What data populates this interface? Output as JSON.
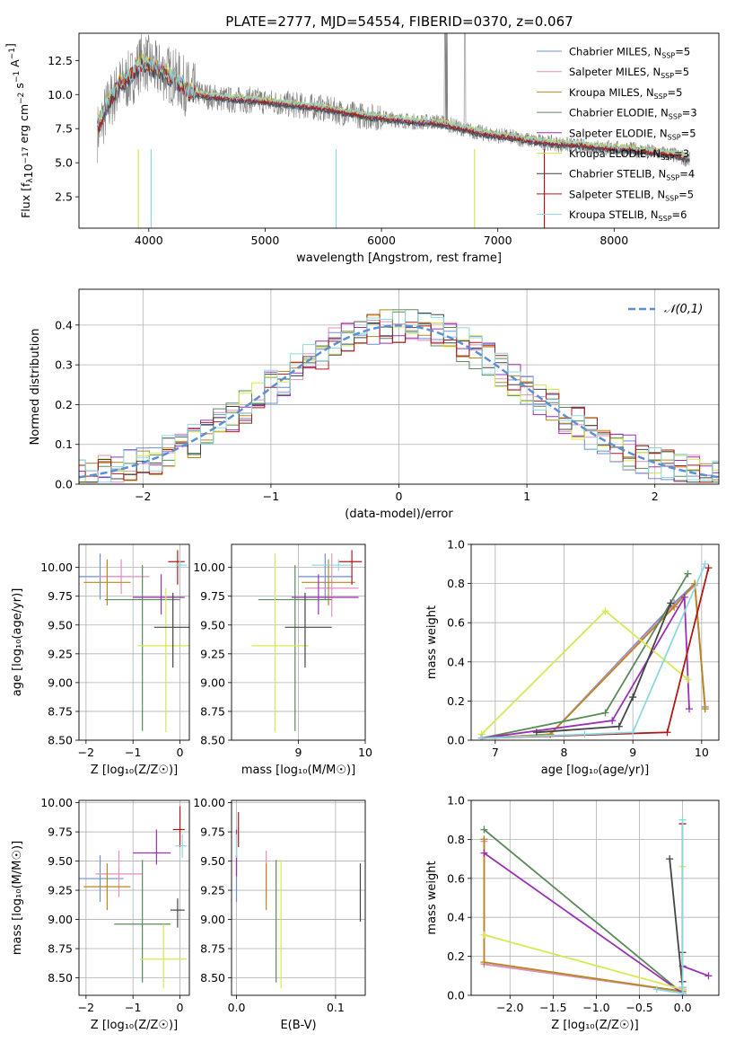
{
  "figure": {
    "title": "PLATE=2777, MJD=54554, FIBERID=0370, z=0.067"
  },
  "models": [
    {
      "name": "Chabrier MILES, N",
      "sub": "SSP",
      "tail": "=5",
      "color": "#6b8ed6"
    },
    {
      "name": "Salpeter MILES, N",
      "sub": "SSP",
      "tail": "=5",
      "color": "#e48fbd"
    },
    {
      "name": "Kroupa MILES, N",
      "sub": "SSP",
      "tail": "=5",
      "color": "#b8881c"
    },
    {
      "name": "Chabrier ELODIE, N",
      "sub": "SSP",
      "tail": "=3",
      "color": "#5a8a5a"
    },
    {
      "name": "Salpeter ELODIE, N",
      "sub": "SSP",
      "tail": "=5",
      "color": "#9b30b4"
    },
    {
      "name": "Kroupa ELODIE, N",
      "sub": "SSP",
      "tail": "=3",
      "color": "#d8e84e"
    },
    {
      "name": "Chabrier STELIB, N",
      "sub": "SSP",
      "tail": "=4",
      "color": "#444444"
    },
    {
      "name": "Salpeter STELIB, N",
      "sub": "SSP",
      "tail": "=5",
      "color": "#b01818"
    },
    {
      "name": "Kroupa STELIB, N",
      "sub": "SSP",
      "tail": "=6",
      "color": "#8cd8e0"
    }
  ],
  "chart_data": [
    {
      "id": "spectrum",
      "type": "line",
      "xlabel": "wavelength [Angstrom, rest frame]",
      "ylabel": "Flux [f_λ 10^-17 erg cm^-2 s^-1 A^-1]",
      "xlim": [
        3400,
        8900
      ],
      "ylim": [
        0.2,
        14.5
      ],
      "xticks": [
        4000,
        5000,
        6000,
        7000,
        8000
      ],
      "yticks": [
        2.5,
        5.0,
        7.5,
        10.0,
        12.5
      ],
      "ytick_labels": [
        "2.5",
        "5.0",
        "7.5",
        "10.0",
        "12.5"
      ],
      "data_series": {
        "name": "",
        "color": "#808080",
        "x": [
          3560,
          3650,
          3750,
          3850,
          3950,
          4050,
          4150,
          4250,
          4350,
          4500,
          4700,
          4900,
          5100,
          5300,
          5500,
          5700,
          5900,
          6100,
          6300,
          6500,
          6700,
          6900,
          7100,
          7300,
          7500,
          7700,
          7900,
          8100,
          8300,
          8500,
          8650
        ],
        "y": [
          7.2,
          9.2,
          10.6,
          11.2,
          12.6,
          11.8,
          11.6,
          11.1,
          10.3,
          9.9,
          9.6,
          9.6,
          9.4,
          9.2,
          9.0,
          8.6,
          8.4,
          8.2,
          8.0,
          8.0,
          7.5,
          7.1,
          6.9,
          6.6,
          6.4,
          6.2,
          6.1,
          6.0,
          5.8,
          5.6,
          5.2
        ]
      },
      "model_series": {
        "x": [
          3560,
          3650,
          3750,
          3850,
          3950,
          4050,
          4150,
          4250,
          4350,
          4500,
          4700,
          4900,
          5100,
          5300,
          5500,
          5700,
          5900,
          6100,
          6300,
          6500,
          6700,
          6900,
          7100,
          7300,
          7500,
          7700,
          7900,
          8100,
          8300,
          8500,
          8650
        ],
        "y": [
          7.6,
          9.3,
          10.8,
          11.4,
          12.4,
          11.9,
          11.5,
          10.9,
          10.2,
          9.9,
          9.7,
          9.6,
          9.4,
          9.2,
          9.0,
          8.7,
          8.4,
          8.2,
          8.0,
          7.9,
          7.5,
          7.1,
          6.9,
          6.6,
          6.4,
          6.3,
          6.1,
          6.0,
          5.8,
          5.6,
          5.3
        ]
      },
      "legend": "top-right"
    },
    {
      "id": "residuals",
      "type": "line",
      "xlabel": "(data-model)/error",
      "ylabel": "Normed distribution",
      "xlim": [
        -2.5,
        2.5
      ],
      "ylim": [
        0,
        0.49
      ],
      "xticks": [
        -2,
        -1,
        0,
        1,
        2
      ],
      "yticks": [
        0.0,
        0.1,
        0.2,
        0.3,
        0.4
      ],
      "ytick_labels": [
        "0.0",
        "0.1",
        "0.2",
        "0.3",
        "0.4"
      ],
      "reference": {
        "label": "𝒩(0,1)",
        "color": "#5b8fd6",
        "mu": 0,
        "sigma": 1
      },
      "legend": "top-right"
    },
    {
      "id": "age_vs_Z",
      "type": "scatter",
      "xlabel": "Z [log₁₀(Z/Z☉)]",
      "ylabel": "age  [log₁₀(age/yr)]",
      "xlim": [
        -2.15,
        0.2
      ],
      "ylim": [
        8.5,
        10.2
      ],
      "xticks": [
        -2,
        -1,
        0
      ],
      "yticks": [
        8.5,
        8.75,
        9.0,
        9.25,
        9.5,
        9.75,
        10.0
      ],
      "ytick_labels": [
        "8.50",
        "8.75",
        "9.00",
        "9.25",
        "9.50",
        "9.75",
        "10.00"
      ],
      "points": [
        {
          "x": -1.7,
          "y": 9.92,
          "xerr": [
            0.5,
            0.5
          ],
          "yerr": [
            0.2,
            0.2
          ]
        },
        {
          "x": -1.25,
          "y": 9.92,
          "xerr": [
            0.5,
            0.6
          ],
          "yerr": [
            0.15,
            0.15
          ]
        },
        {
          "x": -1.55,
          "y": 9.87,
          "xerr": [
            0.5,
            0.5
          ],
          "yerr": [
            0.2,
            0.2
          ]
        },
        {
          "x": -0.8,
          "y": 9.72,
          "xerr": [
            0.8,
            0.8
          ],
          "yerr": [
            1.14,
            0.3
          ]
        },
        {
          "x": -0.4,
          "y": 9.74,
          "xerr": [
            0.6,
            0.5
          ],
          "yerr": [
            0.15,
            0.2
          ]
        },
        {
          "x": -0.3,
          "y": 9.32,
          "xerr": [
            0.6,
            0.6
          ],
          "yerr": [
            0.75,
            0.5
          ]
        },
        {
          "x": -0.15,
          "y": 9.48,
          "xerr": [
            0.4,
            0.4
          ],
          "yerr": [
            0.35,
            0.3
          ]
        },
        {
          "x": -0.05,
          "y": 10.05,
          "xerr": [
            0.2,
            0.15
          ],
          "yerr": [
            0.2,
            0.1
          ]
        },
        {
          "x": 0.0,
          "y": 10.02,
          "xerr": [
            0.1,
            0.15
          ],
          "yerr": [
            0.05,
            0.05
          ]
        }
      ]
    },
    {
      "id": "age_vs_mass",
      "type": "scatter",
      "xlabel": "mass [log₁₀(M/M☉)]",
      "ylabel": "",
      "xlim": [
        8.0,
        10.0
      ],
      "ylim": [
        8.5,
        10.2
      ],
      "xticks": [
        9,
        10
      ],
      "yticks": [
        8.5,
        8.75,
        9.0,
        9.25,
        9.5,
        9.75,
        10.0
      ],
      "ytick_labels": [
        "8.50",
        "8.75",
        "9.00",
        "9.25",
        "9.50",
        "9.75",
        "10.00"
      ],
      "points": [
        {
          "x": 9.4,
          "y": 9.92,
          "xerr": [
            0.4,
            0.4
          ],
          "yerr": [
            0.2,
            0.2
          ]
        },
        {
          "x": 9.5,
          "y": 9.82,
          "xerr": [
            0.4,
            0.4
          ],
          "yerr": [
            0.25,
            0.3
          ]
        },
        {
          "x": 9.45,
          "y": 9.87,
          "xerr": [
            0.4,
            0.4
          ],
          "yerr": [
            0.2,
            0.2
          ]
        },
        {
          "x": 8.95,
          "y": 9.72,
          "xerr": [
            0.55,
            0.55
          ],
          "yerr": [
            1.14,
            0.3
          ]
        },
        {
          "x": 9.3,
          "y": 9.74,
          "xerr": [
            0.4,
            0.6
          ],
          "yerr": [
            0.15,
            0.2
          ]
        },
        {
          "x": 8.65,
          "y": 9.32,
          "xerr": [
            0.35,
            0.5
          ],
          "yerr": [
            0.75,
            0.8
          ]
        },
        {
          "x": 9.1,
          "y": 9.48,
          "xerr": [
            0.3,
            0.4
          ],
          "yerr": [
            0.35,
            0.3
          ]
        },
        {
          "x": 9.8,
          "y": 10.05,
          "xerr": [
            0.2,
            0.15
          ],
          "yerr": [
            0.2,
            0.1
          ]
        },
        {
          "x": 9.6,
          "y": 10.02,
          "xerr": [
            0.4,
            0.2
          ],
          "yerr": [
            0.05,
            0.05
          ]
        }
      ]
    },
    {
      "id": "weight_vs_age",
      "type": "line",
      "xlabel": "age  [log₁₀(age/yr)]",
      "ylabel": "mass weight",
      "xlim": [
        6.65,
        10.25
      ],
      "ylim": [
        0,
        1
      ],
      "xticks": [
        7,
        8,
        9,
        10
      ],
      "yticks": [
        0.0,
        0.2,
        0.4,
        0.6,
        0.8,
        1.0
      ],
      "ytick_labels": [
        "0.0",
        "0.2",
        "0.4",
        "0.6",
        "0.8",
        "1.0"
      ],
      "series": [
        {
          "x": [
            6.8,
            7.8,
            9.6,
            9.9,
            10.05
          ],
          "y": [
            0.01,
            0.03,
            0.7,
            0.8,
            0.17
          ]
        },
        {
          "x": [
            6.8,
            7.8,
            9.6,
            9.9,
            10.05
          ],
          "y": [
            0.01,
            0.03,
            0.69,
            0.79,
            0.16
          ]
        },
        {
          "x": [
            6.8,
            7.8,
            9.6,
            9.9,
            10.05
          ],
          "y": [
            0.01,
            0.03,
            0.68,
            0.8,
            0.16
          ]
        },
        {
          "x": [
            6.8,
            8.6,
            9.8
          ],
          "y": [
            0.01,
            0.14,
            0.85
          ]
        },
        {
          "x": [
            6.8,
            8.7,
            9.75,
            9.82
          ],
          "y": [
            0.01,
            0.1,
            0.73,
            0.16
          ]
        },
        {
          "x": [
            6.8,
            8.6,
            9.8
          ],
          "y": [
            0.03,
            0.66,
            0.31
          ]
        },
        {
          "x": [
            7.6,
            8.8,
            9.0,
            9.55
          ],
          "y": [
            0.04,
            0.07,
            0.22,
            0.7
          ]
        },
        {
          "x": [
            6.8,
            9.5,
            10.1
          ],
          "y": [
            0.01,
            0.04,
            0.88
          ]
        },
        {
          "x": [
            6.8,
            8.3,
            9.0,
            10.05
          ],
          "y": [
            0.01,
            0.03,
            0.04,
            0.9
          ]
        }
      ]
    },
    {
      "id": "mass_vs_Z",
      "type": "scatter",
      "xlabel": "Z [log₁₀(Z/Z☉)]",
      "ylabel": "mass [log₁₀(M/M☉)]",
      "xlim": [
        -2.15,
        0.2
      ],
      "ylim": [
        8.35,
        10.02
      ],
      "xticks": [
        -2,
        -1,
        0
      ],
      "yticks": [
        8.5,
        8.75,
        9.0,
        9.25,
        9.5,
        9.75,
        10.0
      ],
      "ytick_labels": [
        "8.50",
        "8.75",
        "9.00",
        "9.25",
        "9.50",
        "9.75",
        "10.00"
      ],
      "points": [
        {
          "x": -1.7,
          "y": 9.35,
          "xerr": [
            0.45,
            0.5
          ],
          "yerr": [
            0.2,
            0.2
          ]
        },
        {
          "x": -1.3,
          "y": 9.39,
          "xerr": [
            0.5,
            0.5
          ],
          "yerr": [
            0.2,
            0.2
          ]
        },
        {
          "x": -1.55,
          "y": 9.28,
          "xerr": [
            0.5,
            0.5
          ],
          "yerr": [
            0.2,
            0.2
          ]
        },
        {
          "x": -0.8,
          "y": 8.96,
          "xerr": [
            0.6,
            0.6
          ],
          "yerr": [
            0.5,
            0.55
          ]
        },
        {
          "x": -0.5,
          "y": 9.57,
          "xerr": [
            0.5,
            0.3
          ],
          "yerr": [
            0.1,
            0.2
          ]
        },
        {
          "x": -0.35,
          "y": 8.66,
          "xerr": [
            0.5,
            0.5
          ],
          "yerr": [
            0.25,
            0.3
          ]
        },
        {
          "x": -0.05,
          "y": 9.08,
          "xerr": [
            0.15,
            0.15
          ],
          "yerr": [
            0.15,
            0.1
          ]
        },
        {
          "x": 0.0,
          "y": 9.77,
          "xerr": [
            0.15,
            0.1
          ],
          "yerr": [
            0.15,
            0.2
          ]
        },
        {
          "x": 0.05,
          "y": 9.63,
          "xerr": [
            0.15,
            0.1
          ],
          "yerr": [
            0.1,
            0.1
          ]
        }
      ]
    },
    {
      "id": "mass_vs_ebv",
      "type": "scatter",
      "xlabel": "E(B-V)",
      "ylabel": "",
      "xlim": [
        -0.005,
        0.13
      ],
      "ylim": [
        8.35,
        10.02
      ],
      "xticks": [
        0.0,
        0.1
      ],
      "xtick_labels": [
        "0.0",
        "0.1"
      ],
      "yticks": [
        8.5,
        8.75,
        9.0,
        9.25,
        9.5,
        9.75,
        10.0
      ],
      "ytick_labels": [
        "8.50",
        "8.75",
        "9.00",
        "9.25",
        "9.50",
        "9.75",
        "10.00"
      ],
      "points": [
        {
          "x": 0.0,
          "y": 9.35,
          "xerr": [
            0,
            0
          ],
          "yerr": [
            0.2,
            0.2
          ]
        },
        {
          "x": 0.03,
          "y": 9.39,
          "xerr": [
            0,
            0
          ],
          "yerr": [
            0.2,
            0.2
          ]
        },
        {
          "x": 0.03,
          "y": 9.28,
          "xerr": [
            0,
            0
          ],
          "yerr": [
            0.2,
            0.2
          ]
        },
        {
          "x": 0.04,
          "y": 8.96,
          "xerr": [
            0,
            0
          ],
          "yerr": [
            0.5,
            0.55
          ]
        },
        {
          "x": 0.0,
          "y": 9.57,
          "xerr": [
            0,
            0
          ],
          "yerr": [
            0.2,
            0.2
          ]
        },
        {
          "x": 0.045,
          "y": 8.66,
          "xerr": [
            0,
            0
          ],
          "yerr": [
            0.25,
            0.85
          ]
        },
        {
          "x": 0.125,
          "y": 9.08,
          "xerr": [
            0,
            0
          ],
          "yerr": [
            0.1,
            0.4
          ]
        },
        {
          "x": 0.002,
          "y": 9.77,
          "xerr": [
            0,
            0
          ],
          "yerr": [
            0.15,
            0.15
          ]
        },
        {
          "x": 0.0,
          "y": 9.63,
          "xerr": [
            0,
            0
          ],
          "yerr": [
            0.1,
            0.1
          ]
        }
      ]
    },
    {
      "id": "weight_vs_Z",
      "type": "line",
      "xlabel": "Z [log₁₀(Z/Z☉)]",
      "ylabel": "mass weight",
      "xlim": [
        -2.45,
        0.42
      ],
      "ylim": [
        0,
        1
      ],
      "xticks": [
        -2.0,
        -1.5,
        -1.0,
        -0.5,
        0.0
      ],
      "xtick_labels": [
        "−2.0",
        "−1.5",
        "−1.0",
        "−0.5",
        "0.0"
      ],
      "yticks": [
        0.0,
        0.2,
        0.4,
        0.6,
        0.8,
        1.0
      ],
      "ytick_labels": [
        "0.0",
        "0.2",
        "0.4",
        "0.6",
        "0.8",
        "1.0"
      ],
      "series": [
        {
          "x": [
            -2.3,
            -2.3,
            0.0,
            0.0
          ],
          "y": [
            0.8,
            0.16,
            0.02,
            0.03
          ]
        },
        {
          "x": [
            -2.3,
            -2.3,
            0.0,
            0.0
          ],
          "y": [
            0.79,
            0.16,
            0.02,
            0.03
          ]
        },
        {
          "x": [
            -2.3,
            -2.3,
            0.0,
            0.0
          ],
          "y": [
            0.8,
            0.17,
            0.02,
            0.03
          ]
        },
        {
          "x": [
            -2.3,
            0.0,
            0.0
          ],
          "y": [
            0.85,
            0.01,
            0.03
          ]
        },
        {
          "x": [
            -2.3,
            0.0,
            0.0,
            0.3
          ],
          "y": [
            0.73,
            0.01,
            0.15,
            0.1
          ]
        },
        {
          "x": [
            -2.3,
            0.0,
            0.0
          ],
          "y": [
            0.31,
            0.03,
            0.66
          ]
        },
        {
          "x": [
            -0.15,
            0.0,
            0.0,
            0.0
          ],
          "y": [
            0.7,
            0.04,
            0.07,
            0.22
          ]
        },
        {
          "x": [
            0.0,
            0.0,
            0.0
          ],
          "y": [
            0.88,
            0.04,
            0.01
          ]
        },
        {
          "x": [
            -0.3,
            0.0,
            0.0,
            0.0
          ],
          "y": [
            0.03,
            0.01,
            0.04,
            0.9
          ]
        }
      ]
    }
  ]
}
